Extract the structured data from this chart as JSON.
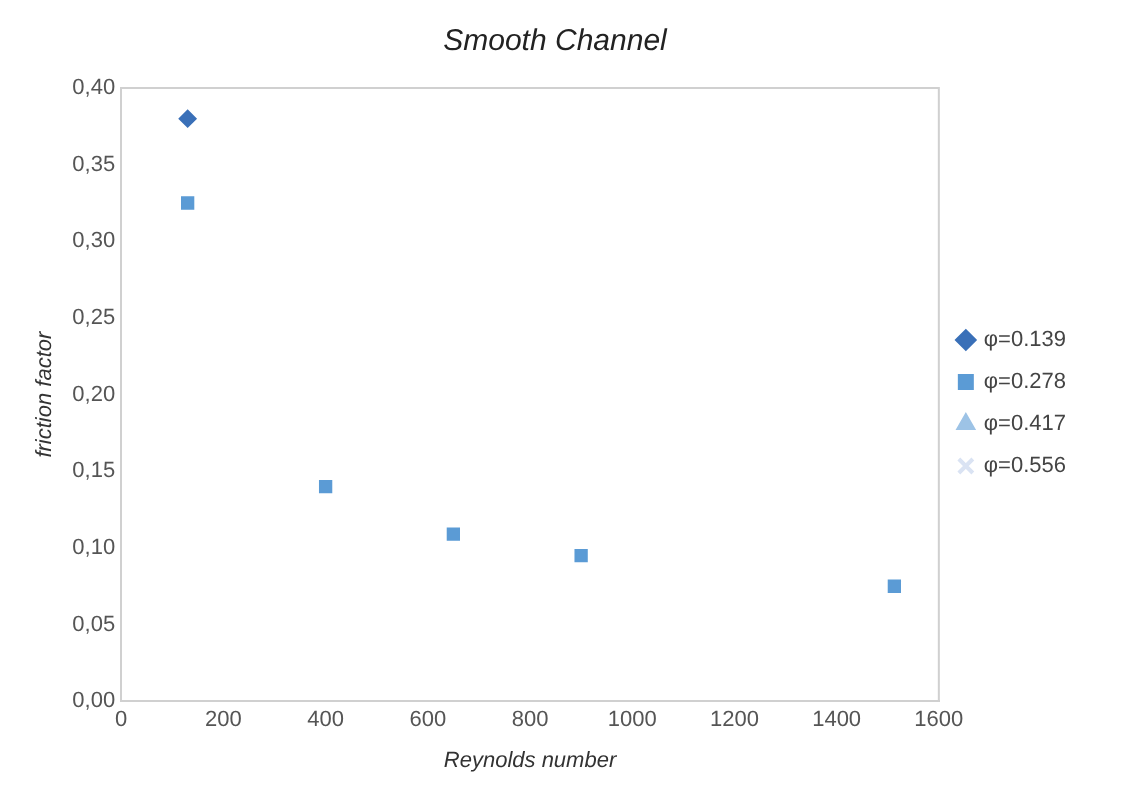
{
  "chart_data": {
    "type": "scatter",
    "title": "Smooth Channel",
    "xlabel": "Reynolds number",
    "ylabel": "friction factor",
    "x": [
      130,
      400,
      650,
      900,
      1513
    ],
    "series": [
      {
        "name": "φ=0.139",
        "color": "#3a70b8",
        "marker": "diamond",
        "values": [
          0.38,
          null,
          null,
          null,
          null
        ]
      },
      {
        "name": "φ=0.278",
        "color": "#5b9bd5",
        "marker": "square",
        "values": [
          0.325,
          0.14,
          0.109,
          0.095,
          0.075
        ]
      },
      {
        "name": "φ=0.417",
        "color": "#9dc3e6",
        "marker": "triangle",
        "values": [
          null,
          null,
          null,
          null,
          null
        ]
      },
      {
        "name": "φ=0.556",
        "color": "#dae3f3",
        "marker": "cross",
        "values": [
          null,
          null,
          null,
          null,
          null
        ]
      }
    ],
    "xlim": [
      0,
      1600
    ],
    "xticks": [
      0,
      200,
      400,
      600,
      800,
      1000,
      1200,
      1400,
      1600
    ],
    "ylim": [
      0,
      0.4
    ],
    "yticks": [
      {
        "value": 0,
        "label": "0,00"
      },
      {
        "value": 0.05,
        "label": "0,05"
      },
      {
        "value": 0.1,
        "label": "0,10"
      },
      {
        "value": 0.15,
        "label": "0,15"
      },
      {
        "value": 0.2,
        "label": "0,20"
      },
      {
        "value": 0.25,
        "label": "0,25"
      },
      {
        "value": 0.3,
        "label": "0,30"
      },
      {
        "value": 0.35,
        "label": "0,35"
      },
      {
        "value": 0.4,
        "label": "0,40"
      }
    ],
    "grid": false,
    "legend": "right"
  }
}
